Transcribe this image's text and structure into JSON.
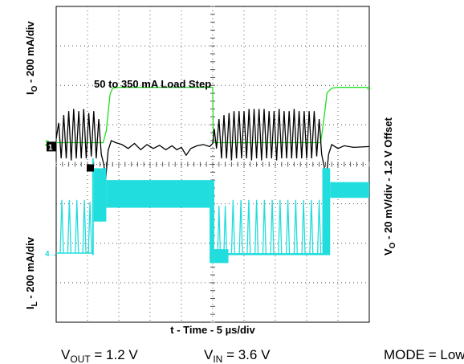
{
  "chart_data": {
    "type": "line",
    "title": "",
    "xlabel": "t - Time - 5 µs/div",
    "ylabel_left_top": "I",
    "ylabel_left_top_sub": "O",
    "ylabel_left_top_rest": " - 200 mA/div",
    "ylabel_left_bottom": "I",
    "ylabel_left_bottom_sub": "L",
    "ylabel_left_bottom_rest": " - 200 mA/div",
    "ylabel_right": "V",
    "ylabel_right_sub": "O",
    "ylabel_right_rest": " - 20 mV/div - 1.2 V Offset",
    "annotation": "50 to 350 mA Load Step",
    "grid": true,
    "divisions": {
      "x": 10,
      "y": 8
    },
    "x_unit": "div",
    "y_unit": "div",
    "series": [
      {
        "name": "IO",
        "color": "#22dd22",
        "points": [
          [
            0,
            -0.1
          ],
          [
            0.2,
            -0.1
          ],
          [
            0.6,
            -0.1
          ],
          [
            1.0,
            -0.1
          ],
          [
            1.5,
            -0.1
          ],
          [
            1.6,
            0.2
          ],
          [
            1.72,
            1.12
          ],
          [
            1.8,
            1.28
          ],
          [
            2.0,
            1.3
          ],
          [
            3.0,
            1.3
          ],
          [
            4.0,
            1.3
          ],
          [
            4.9,
            1.3
          ],
          [
            5.0,
            1.3
          ],
          [
            5.02,
            -0.1
          ],
          [
            6.0,
            -0.1
          ],
          [
            7.0,
            -0.1
          ],
          [
            8.0,
            -0.1
          ],
          [
            8.45,
            -0.1
          ],
          [
            8.55,
            0.5
          ],
          [
            8.65,
            1.16
          ],
          [
            8.8,
            1.28
          ],
          [
            9.0,
            1.3
          ],
          [
            9.5,
            1.3
          ],
          [
            10,
            1.3
          ]
        ]
      },
      {
        "name": "VO",
        "color": "#000000",
        "points": [
          [
            0,
            0.2
          ],
          [
            0.08,
            0.6
          ],
          [
            0.16,
            -0.3
          ],
          [
            0.24,
            0.8
          ],
          [
            0.32,
            -0.3
          ],
          [
            0.4,
            0.9
          ],
          [
            0.48,
            -0.35
          ],
          [
            0.56,
            0.95
          ],
          [
            0.64,
            -0.3
          ],
          [
            0.72,
            0.9
          ],
          [
            0.8,
            -0.3
          ],
          [
            0.88,
            0.95
          ],
          [
            0.96,
            -0.3
          ],
          [
            1.04,
            0.85
          ],
          [
            1.12,
            -0.25
          ],
          [
            1.2,
            0.9
          ],
          [
            1.28,
            -0.3
          ],
          [
            1.36,
            0.7
          ],
          [
            1.44,
            -0.2
          ],
          [
            1.52,
            -0.45
          ],
          [
            1.58,
            -0.85
          ],
          [
            1.66,
            -0.1
          ],
          [
            1.76,
            0.15
          ],
          [
            1.9,
            0.1
          ],
          [
            2.1,
            0.05
          ],
          [
            2.3,
            -0.05
          ],
          [
            2.5,
            0.08
          ],
          [
            2.7,
            -0.08
          ],
          [
            2.9,
            0.05
          ],
          [
            3.1,
            -0.05
          ],
          [
            3.3,
            0.03
          ],
          [
            3.5,
            -0.08
          ],
          [
            3.7,
            0.02
          ],
          [
            3.85,
            -0.08
          ],
          [
            4.0,
            -0.02
          ],
          [
            4.15,
            -0.22
          ],
          [
            4.3,
            -0.05
          ],
          [
            4.5,
            0.02
          ],
          [
            4.7,
            0.05
          ],
          [
            4.9,
            0.0
          ],
          [
            5.0,
            0.08
          ],
          [
            5.05,
            0.45
          ],
          [
            5.12,
            -0.05
          ],
          [
            5.2,
            0.7
          ],
          [
            5.28,
            -0.3
          ],
          [
            5.36,
            0.8
          ],
          [
            5.44,
            -0.3
          ],
          [
            5.52,
            0.85
          ],
          [
            5.6,
            -0.35
          ],
          [
            5.68,
            0.9
          ],
          [
            5.76,
            -0.3
          ],
          [
            5.84,
            0.9
          ],
          [
            5.92,
            -0.3
          ],
          [
            6.0,
            0.9
          ],
          [
            6.08,
            -0.3
          ],
          [
            6.16,
            0.95
          ],
          [
            6.24,
            -0.35
          ],
          [
            6.32,
            0.95
          ],
          [
            6.4,
            -0.3
          ],
          [
            6.48,
            0.95
          ],
          [
            6.56,
            -0.35
          ],
          [
            6.64,
            0.95
          ],
          [
            6.72,
            -0.3
          ],
          [
            6.8,
            0.9
          ],
          [
            6.88,
            -0.3
          ],
          [
            6.96,
            0.9
          ],
          [
            7.04,
            -0.35
          ],
          [
            7.12,
            0.95
          ],
          [
            7.2,
            -0.3
          ],
          [
            7.28,
            0.9
          ],
          [
            7.36,
            -0.3
          ],
          [
            7.44,
            0.9
          ],
          [
            7.52,
            -0.3
          ],
          [
            7.6,
            0.95
          ],
          [
            7.68,
            -0.3
          ],
          [
            7.76,
            0.9
          ],
          [
            7.84,
            -0.3
          ],
          [
            7.92,
            0.9
          ],
          [
            8.0,
            -0.3
          ],
          [
            8.08,
            0.9
          ],
          [
            8.16,
            -0.3
          ],
          [
            8.24,
            0.9
          ],
          [
            8.32,
            -0.25
          ],
          [
            8.4,
            0.7
          ],
          [
            8.48,
            -0.2
          ],
          [
            8.56,
            -0.5
          ],
          [
            8.62,
            -0.85
          ],
          [
            8.7,
            -0.2
          ],
          [
            8.8,
            0.05
          ],
          [
            9.0,
            -0.05
          ],
          [
            9.2,
            0.02
          ],
          [
            9.5,
            -0.02
          ],
          [
            10,
            0.0
          ]
        ]
      },
      {
        "name": "IL",
        "color": "#22dddd",
        "envelope": [
          {
            "from": 0.0,
            "to": 1.0,
            "low": -2.7,
            "high": -2.7,
            "spikes": [
              0.18,
              0.42,
              0.66,
              0.9
            ],
            "spike_high": -1.35
          },
          {
            "from": 1.0,
            "to": 1.15,
            "low": -2.7,
            "high": -2.7,
            "spikes": [
              1.08
            ],
            "spike_high": -1.4
          },
          {
            "from": 1.15,
            "to": 1.2,
            "low": -2.75,
            "high": -0.3,
            "spikes": [],
            "spike_high": -0.3
          },
          {
            "from": 1.2,
            "to": 1.6,
            "low": -1.9,
            "high": -0.55,
            "spikes": [],
            "spike_high": -0.55
          },
          {
            "from": 1.6,
            "to": 4.9,
            "low": -1.55,
            "high": -0.85,
            "spikes": [],
            "spike_high": -0.85
          },
          {
            "from": 4.9,
            "to": 5.05,
            "low": -2.95,
            "high": -0.85,
            "spikes": [],
            "spike_high": -0.85
          },
          {
            "from": 5.05,
            "to": 5.5,
            "low": -2.95,
            "high": -2.6,
            "spikes": [
              5.2,
              5.4
            ],
            "spike_high": -1.5
          },
          {
            "from": 5.5,
            "to": 8.5,
            "low": -2.75,
            "high": -2.7,
            "spikes": [
              5.65,
              5.9,
              6.15,
              6.4,
              6.65,
              6.9,
              7.15,
              7.4,
              7.65,
              7.9,
              8.15,
              8.4
            ],
            "spike_high": -1.35
          },
          {
            "from": 8.5,
            "to": 8.75,
            "low": -2.75,
            "high": -0.55,
            "spikes": [],
            "spike_high": -0.55
          },
          {
            "from": 8.75,
            "to": 10,
            "low": -1.3,
            "high": -0.9,
            "spikes": [],
            "spike_high": -0.9
          }
        ]
      }
    ],
    "markers": [
      {
        "label": "2",
        "channel": "IO"
      },
      {
        "label": "1",
        "channel": "VO"
      },
      {
        "label": "4",
        "channel": "IL"
      }
    ]
  },
  "footer": {
    "vout_main": "V",
    "vout_sub": "OUT",
    "vout_rest": " = 1.2 V",
    "vin_main": "V",
    "vin_sub": "IN",
    "vin_rest": " = 3.6 V",
    "mode": "MODE = Low"
  },
  "colors": {
    "grid": "#555555",
    "frame": "#000000"
  }
}
